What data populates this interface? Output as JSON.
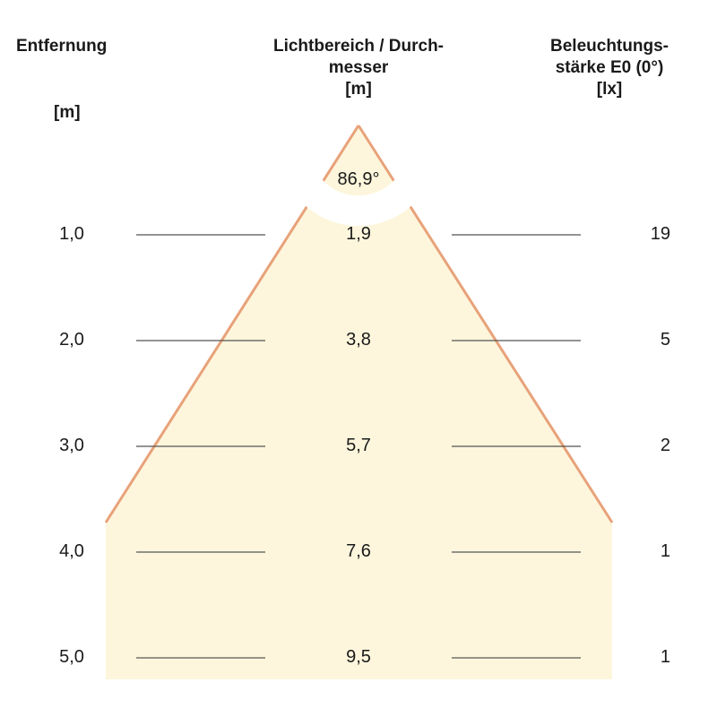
{
  "headers": {
    "distance": {
      "title": "Entfernung",
      "unit": "[m]"
    },
    "diameter": {
      "title_line1": "Lichtbereich / Durch-",
      "title_line2": "messer",
      "unit": "[m]"
    },
    "illuminance": {
      "title_line1": "Beleuchtungs-",
      "title_line2": "stärke E0 (0°)",
      "unit": "[lx]"
    }
  },
  "beam_angle": "86,9°",
  "rows": [
    {
      "distance": "1,0",
      "diameter": "1,9",
      "illuminance": "19"
    },
    {
      "distance": "2,0",
      "diameter": "3,8",
      "illuminance": "5"
    },
    {
      "distance": "3,0",
      "diameter": "5,7",
      "illuminance": "2"
    },
    {
      "distance": "4,0",
      "diameter": "7,6",
      "illuminance": "1"
    },
    {
      "distance": "5,0",
      "diameter": "9,5",
      "illuminance": "1"
    }
  ],
  "colors": {
    "cone_fill": "#fdf6dc",
    "cone_edge": "#e8a27a",
    "rule": "#555555"
  }
}
